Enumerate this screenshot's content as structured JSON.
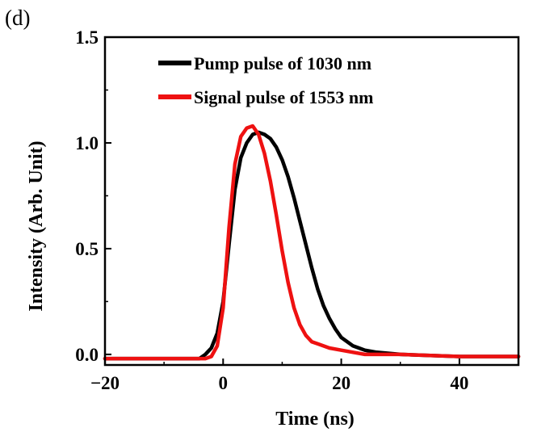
{
  "panel_label": "(d)",
  "chart_data": {
    "type": "line",
    "title": "",
    "xlabel": "Time (ns)",
    "ylabel": "Intensity (Arb. Unit)",
    "xlim": [
      -20,
      50
    ],
    "ylim": [
      -0.05,
      1.5
    ],
    "xticks": [
      -20,
      0,
      20,
      40
    ],
    "xtick_labels": [
      "−20",
      "0",
      "20",
      "40"
    ],
    "yticks": [
      0.0,
      0.5,
      1.0,
      1.5
    ],
    "ytick_labels": [
      "0.0",
      "0.5",
      "1.0",
      "1.5"
    ],
    "grid": false,
    "legend_position": "top-right",
    "series": [
      {
        "name": "Pump pulse of 1030 nm",
        "color": "#000000",
        "x": [
          -20,
          -10,
          -4,
          -3,
          -2,
          -1,
          0,
          1,
          2,
          3,
          4,
          5,
          6,
          7,
          8,
          9,
          10,
          11,
          12,
          13,
          14,
          15,
          16,
          17,
          18,
          19,
          20,
          21,
          22,
          23,
          24,
          26,
          30,
          40,
          50
        ],
        "y": [
          -0.02,
          -0.02,
          -0.02,
          0.0,
          0.03,
          0.1,
          0.25,
          0.52,
          0.78,
          0.93,
          1.0,
          1.04,
          1.05,
          1.04,
          1.02,
          0.98,
          0.92,
          0.84,
          0.74,
          0.63,
          0.52,
          0.41,
          0.31,
          0.23,
          0.17,
          0.12,
          0.08,
          0.06,
          0.04,
          0.03,
          0.02,
          0.01,
          0.0,
          -0.01,
          -0.01
        ]
      },
      {
        "name": "Signal pulse of 1553 nm",
        "color": "#ee1111",
        "x": [
          -20,
          -10,
          -3,
          -2,
          -1,
          0,
          1,
          2,
          3,
          4,
          5,
          6,
          7,
          8,
          9,
          10,
          11,
          12,
          13,
          14,
          15,
          16,
          17,
          18,
          20,
          22,
          24,
          30,
          40,
          50
        ],
        "y": [
          -0.02,
          -0.02,
          -0.02,
          -0.01,
          0.04,
          0.22,
          0.6,
          0.9,
          1.03,
          1.07,
          1.08,
          1.04,
          0.95,
          0.82,
          0.66,
          0.49,
          0.34,
          0.22,
          0.14,
          0.09,
          0.06,
          0.05,
          0.04,
          0.03,
          0.02,
          0.01,
          0.0,
          0.0,
          -0.01,
          -0.01
        ]
      }
    ]
  }
}
